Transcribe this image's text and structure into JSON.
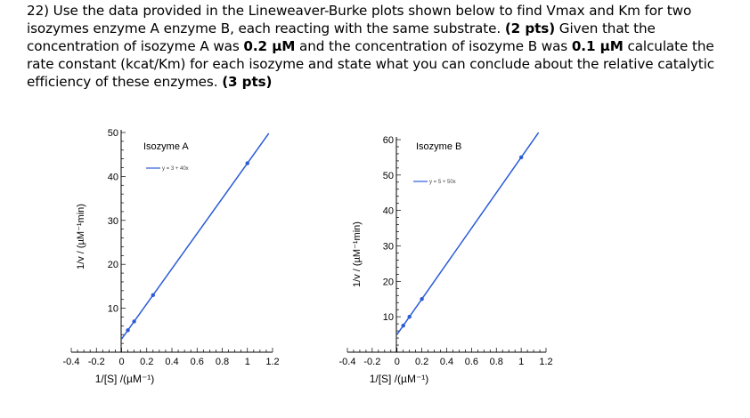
{
  "question": {
    "p1": "22) Use the data provided in the Lineweaver-Burke plots shown below to find Vmax and Km for two isozymes enzyme A enzyme B, each reacting with the same substrate. ",
    "pts1": "(2 pts)",
    "p2": " Given that the concentration of isozyme A was ",
    "concA": "0.2 µM",
    "p3": " and the concentration of isozyme B was ",
    "concB": "0.1 µM",
    "p4": " calculate the rate constant (kcat/Km) for each isozyme and state what you can conclude about the relative catalytic efficiency of these enzymes. ",
    "pts2": " (3 pts)"
  },
  "chart_data": [
    {
      "type": "line",
      "title": "Isozyme A",
      "legend": "y = 3 + 40x",
      "legend_position": "top-left",
      "equation": {
        "intercept": 3,
        "slope": 40
      },
      "x_range": [
        -0.4,
        1.2
      ],
      "ylim": [
        0,
        50
      ],
      "x_ticks": [
        "-0.4",
        "-0.2",
        "0",
        "0.2",
        "0.4",
        "0.6",
        "0.8",
        "1",
        "1.2"
      ],
      "x_tick_values": [
        -0.4,
        -0.2,
        0,
        0.2,
        0.4,
        0.6,
        0.8,
        1,
        1.2
      ],
      "y_ticks": [
        "10",
        "20",
        "30",
        "40",
        "50"
      ],
      "y_tick_values": [
        10,
        20,
        30,
        40,
        50
      ],
      "line_x_range": [
        0,
        1.17
      ],
      "points": [
        {
          "x": 0.05,
          "y": 5
        },
        {
          "x": 0.1,
          "y": 7
        },
        {
          "x": 0.25,
          "y": 13
        },
        {
          "x": 1.0,
          "y": 43
        }
      ],
      "xlabel": "1/[S] /(µM⁻¹)",
      "ylabel": "1/v / (µM⁻¹min)",
      "line_color": "#2a5bd7"
    },
    {
      "type": "line",
      "title": "Isozyme B",
      "legend": "y = 5 + 50x",
      "legend_position": "top-left",
      "equation": {
        "intercept": 5,
        "slope": 50
      },
      "x_range": [
        -0.4,
        1.2
      ],
      "ylim": [
        0,
        60
      ],
      "x_ticks": [
        "-0.4",
        "-0.2",
        "0",
        "0.2",
        "0.4",
        "0.6",
        "0.8",
        "1",
        "1.2"
      ],
      "x_tick_values": [
        -0.4,
        -0.2,
        0,
        0.2,
        0.4,
        0.6,
        0.8,
        1,
        1.2
      ],
      "y_ticks": [
        "10",
        "20",
        "30",
        "40",
        "50",
        "60"
      ],
      "y_tick_values": [
        10,
        20,
        30,
        40,
        50,
        60
      ],
      "line_x_range": [
        0,
        1.14
      ],
      "points": [
        {
          "x": 0.05,
          "y": 7.5
        },
        {
          "x": 0.1,
          "y": 10
        },
        {
          "x": 0.2,
          "y": 15
        },
        {
          "x": 1.0,
          "y": 55
        }
      ],
      "xlabel": "1/[S] /(µM⁻¹)",
      "ylabel": "1/v / (µM⁻¹min)",
      "line_color": "#2a5bd7"
    }
  ]
}
